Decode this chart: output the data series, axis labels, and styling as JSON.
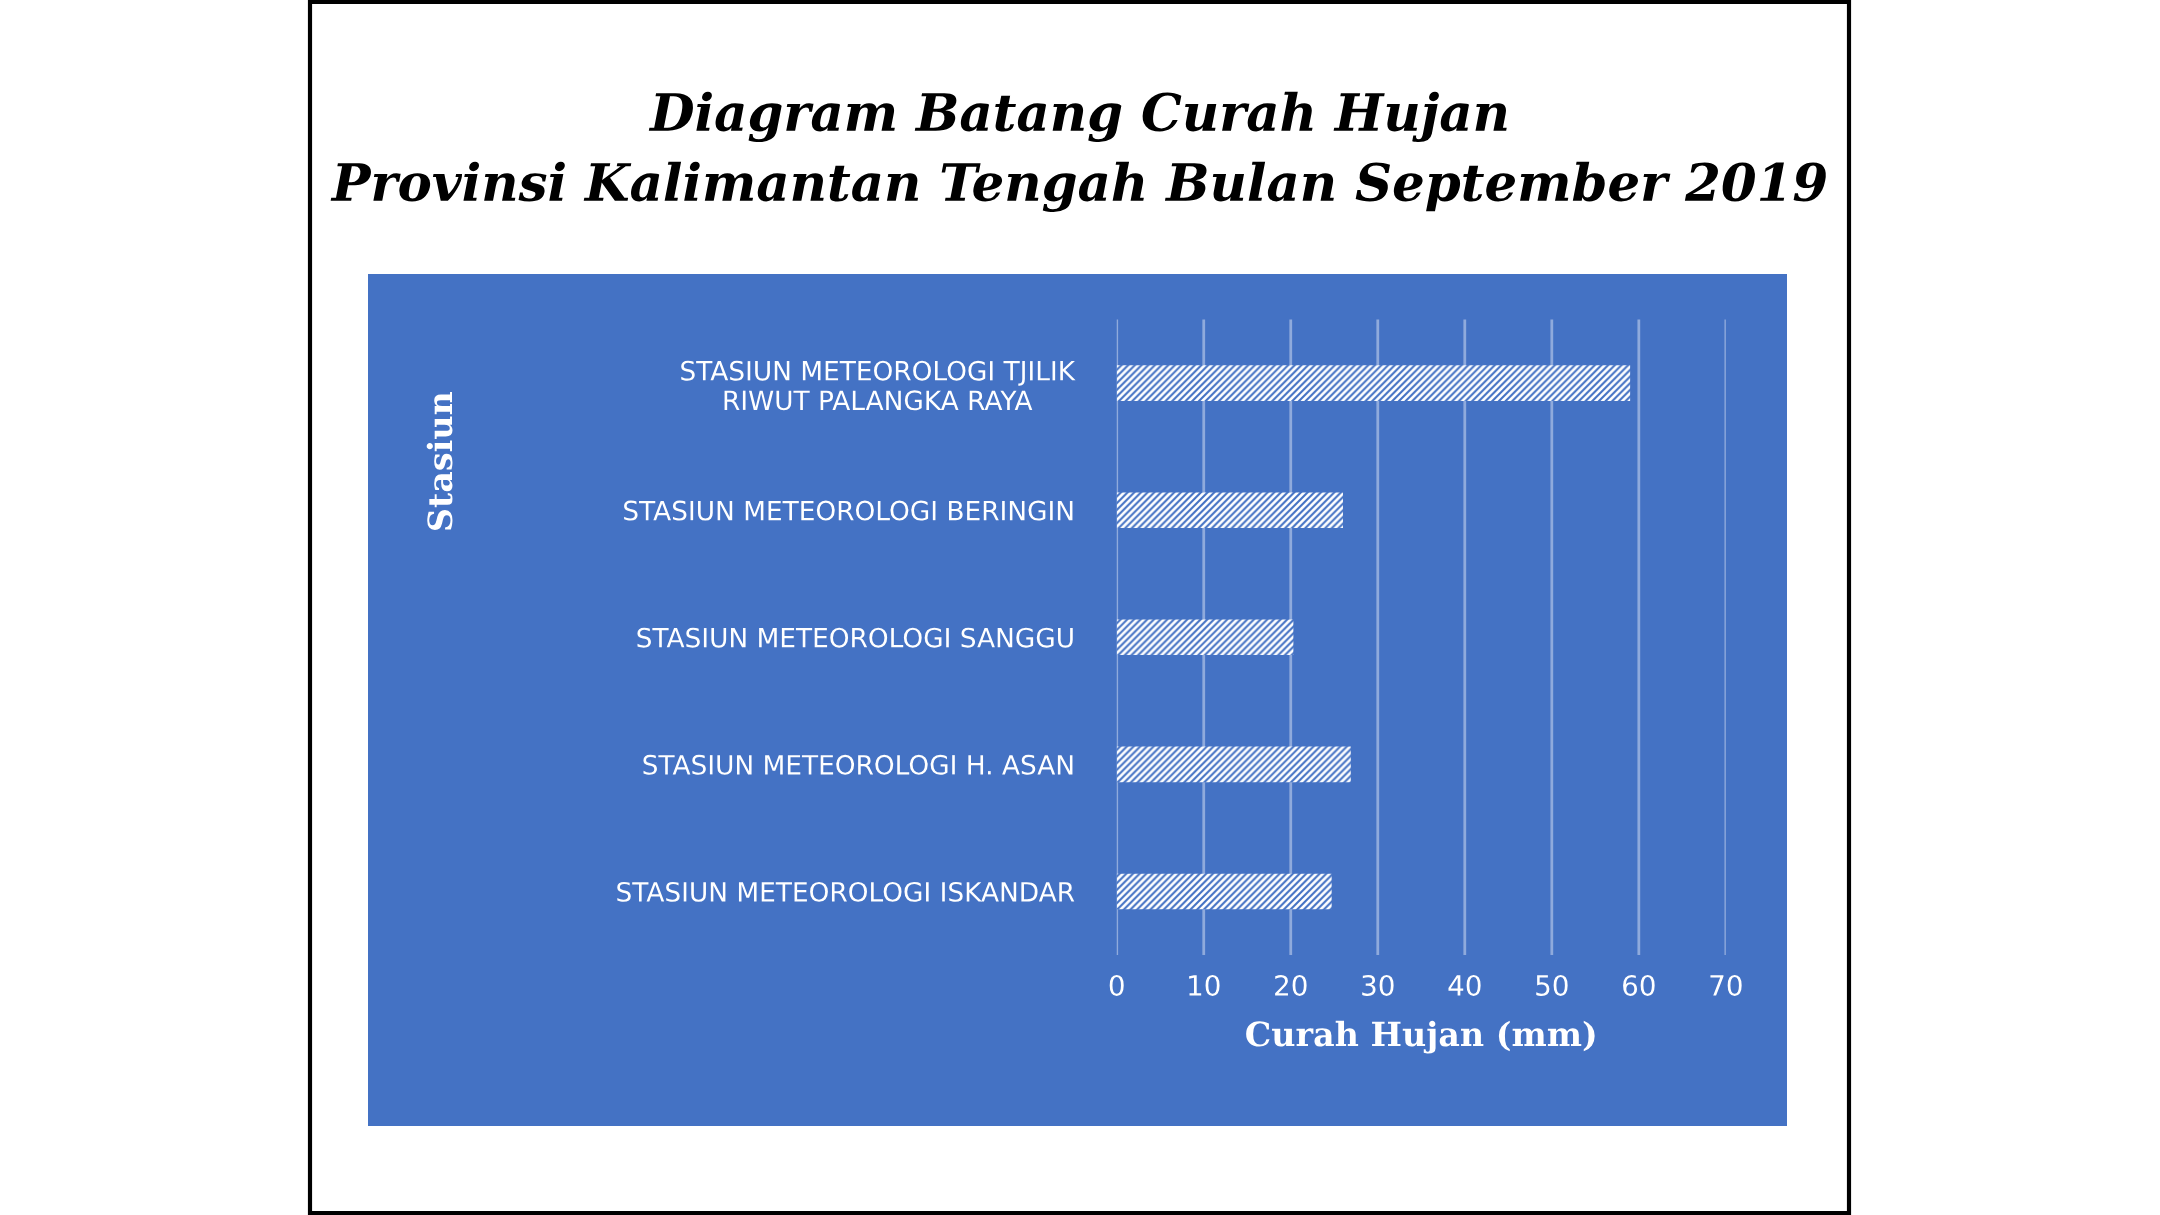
{
  "chart_data": {
    "type": "bar",
    "orientation": "horizontal",
    "title": "Diagram Batang Curah Hujan\nProvinsi Kalimantan Tengah Bulan September 2019",
    "categories": [
      "STASIUN METEOROLOGI TJILIK\nRIWUT PALANGKA RAYA",
      "STASIUN METEOROLOGI BERINGIN",
      "STASIUN METEOROLOGI SANGGU",
      "STASIUN METEOROLOGI H. ASAN",
      "STASIUN METEOROLOGI ISKANDAR"
    ],
    "values": [
      59,
      26,
      20.3,
      26.9,
      24.7
    ],
    "color": "#ffffff",
    "xlabel": "Curah Hujan (mm)",
    "ylabel": "Stasiun",
    "xlim": [
      0,
      70
    ],
    "xticks": [
      0,
      10,
      20,
      30,
      40,
      50,
      60,
      70
    ],
    "grid": "x",
    "legend": false
  }
}
